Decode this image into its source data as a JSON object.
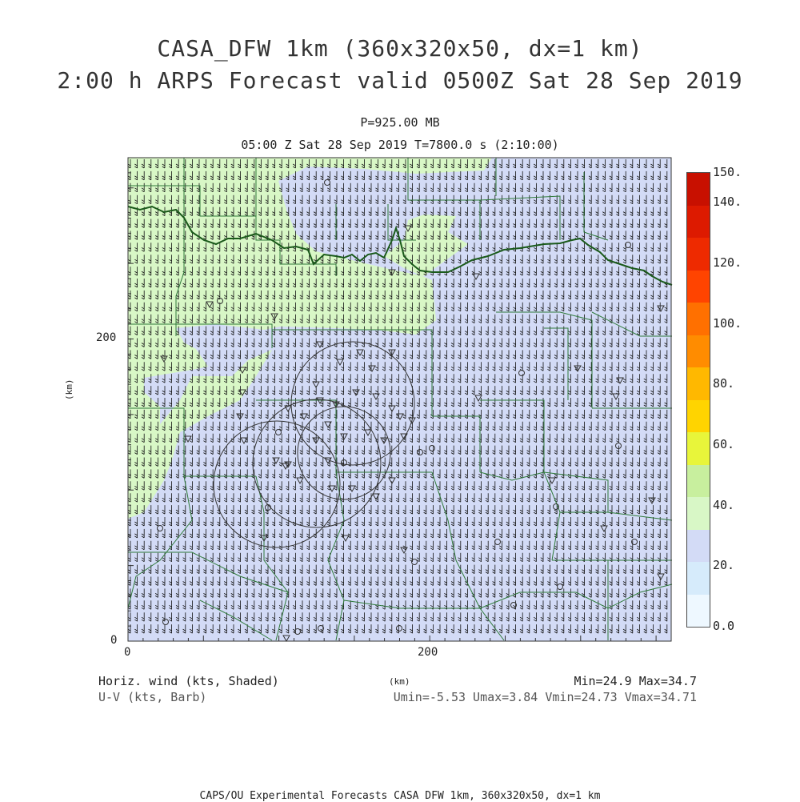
{
  "header": {
    "title_line1": "CASA_DFW 1km (360x320x50, dx=1 km)",
    "title_line2": "2:00 h ARPS Forecast valid 0500Z Sat 28 Sep 2019",
    "pressure": "P=925.00 MB",
    "valid_time": "05:00 Z Sat 28 Sep 2019   T=7800.0 s (2:10:00)"
  },
  "axes": {
    "x_unit": "(km)",
    "y_unit": "(km)",
    "x_ticks": [
      "0",
      "200"
    ],
    "y_ticks": [
      "0",
      "200"
    ],
    "x_range": [
      0,
      360
    ],
    "y_range": [
      0,
      320
    ]
  },
  "colorbar": {
    "labels": [
      "0.0",
      "20.",
      "40.",
      "60.",
      "80.",
      "100.",
      "120.",
      "140.",
      "150."
    ],
    "colors": [
      "#eef8ff",
      "#d6ebfb",
      "#d3dbf6",
      "#d8f7c6",
      "#c8ef9e",
      "#e8f53a",
      "#ffd400",
      "#ffb800",
      "#ff8c00",
      "#ff7000",
      "#ff4400",
      "#ee2a00",
      "#dd1a00",
      "#c81000"
    ]
  },
  "field": {
    "label": "Horiz. wind (kts, Shaded)",
    "barb_label": "U-V (kts, Barb)",
    "min_max": "Min=24.9 Max=34.7",
    "uv_min_max": "Umin=-5.53 Umax=3.84 Vmin=24.73 Vmax=34.71",
    "shading_colors": {
      "low": "#d3dbf6",
      "mid": "#d8f7c6"
    }
  },
  "footer": {
    "credit": "CAPS/OU Experimental Forecasts  CASA DFW 1km, 360x320x50, dx=1 km"
  }
}
